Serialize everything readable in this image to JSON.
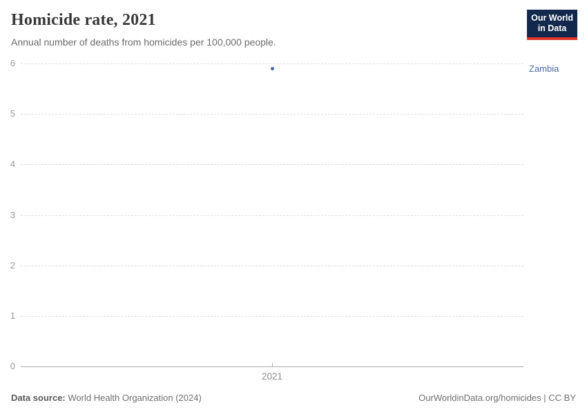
{
  "header": {
    "title": "Homicide rate, 2021",
    "subtitle": "Annual number of deaths from homicides per 100,000 people.",
    "logo": {
      "line1": "Our World",
      "line2": "in Data",
      "bg_color": "#12294d",
      "accent_color": "#e0362c"
    }
  },
  "chart_data": {
    "type": "scatter",
    "title": "Homicide rate, 2021",
    "x": [
      2021
    ],
    "x_tick_labels": [
      "2021"
    ],
    "series": [
      {
        "name": "Zambia",
        "values": [
          5.9
        ],
        "color": "#4c6a9c"
      }
    ],
    "ylim": [
      0,
      6
    ],
    "y_ticks": [
      0,
      1,
      2,
      3,
      4,
      5,
      6
    ],
    "grid": "horizontal-dashed",
    "legend_position": "entity label right of point"
  },
  "footer": {
    "source_label": "Data source:",
    "source_text": "World Health Organization (2024)",
    "rights": "OurWorldinData.org/homicides | CC BY"
  }
}
